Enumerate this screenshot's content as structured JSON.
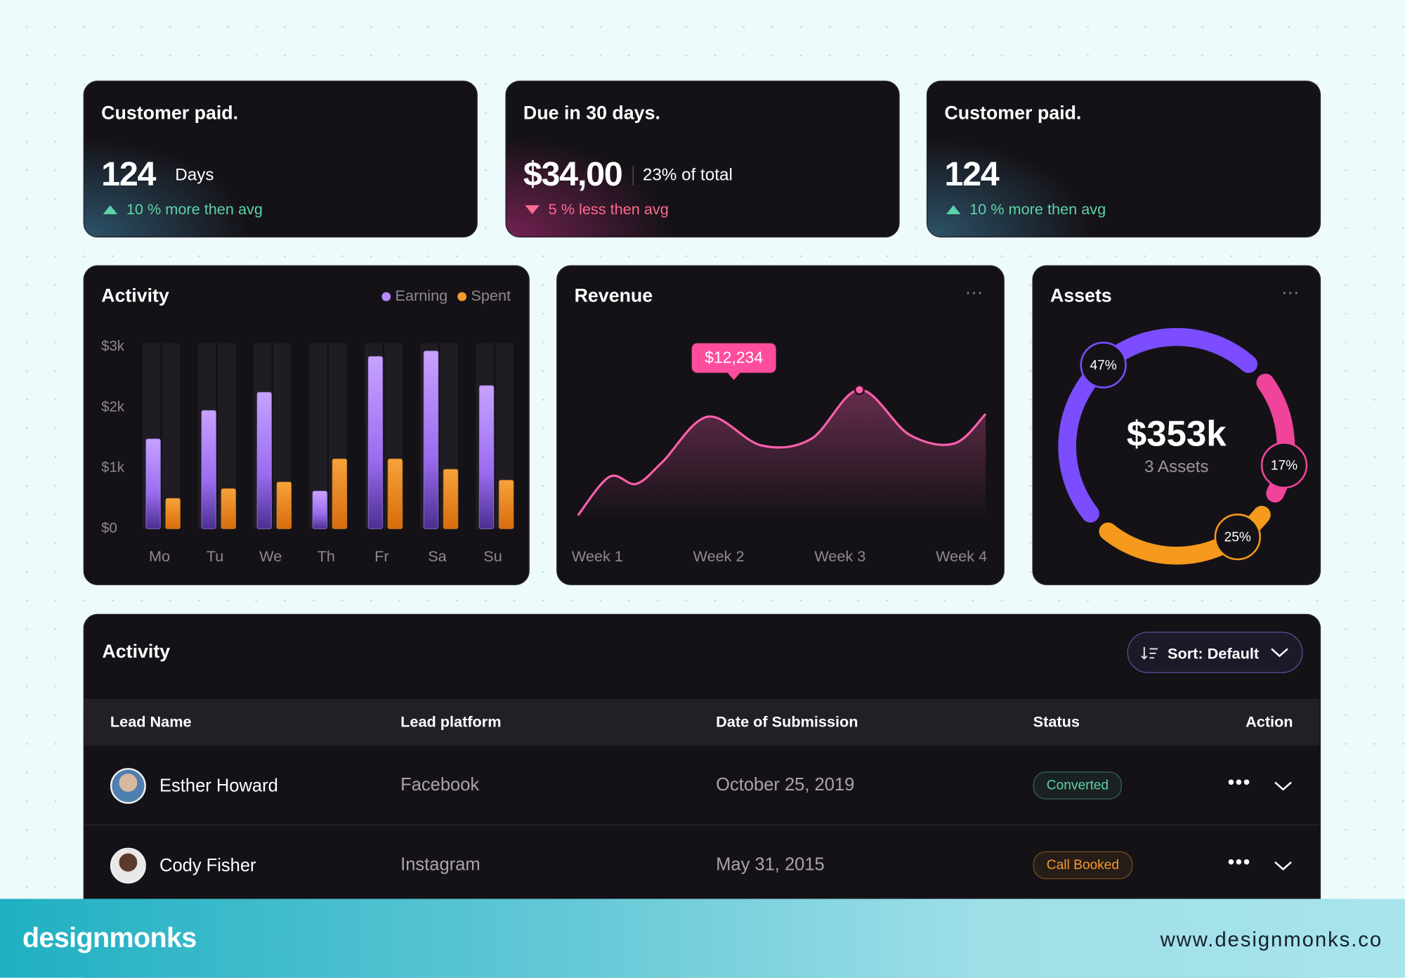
{
  "cards": [
    {
      "title": "Customer paid.",
      "value": "124",
      "unit": "Days",
      "change": "10 % more then avg",
      "trend": "up"
    },
    {
      "title": "Due in 30 days.",
      "value": "$34,00",
      "unit": "23% of total",
      "change": "5 % less then avg",
      "trend": "down"
    },
    {
      "title": "Customer paid.",
      "value": "124",
      "change": "10 % more then avg",
      "trend": "up"
    }
  ],
  "chart_data": [
    {
      "type": "bar",
      "title": "Activity",
      "categories": [
        "Mo",
        "Tu",
        "We",
        "Th",
        "Fr",
        "Sa",
        "Su"
      ],
      "series": [
        {
          "name": "Earning",
          "color": "#b48cff",
          "values": [
            1480,
            1950,
            2250,
            620,
            2840,
            2930,
            2360
          ]
        },
        {
          "name": "Spent",
          "color": "#f59a2c",
          "values": [
            500,
            660,
            770,
            1150,
            1150,
            980,
            800
          ]
        }
      ],
      "ylim": [
        0,
        3000
      ],
      "yticks": [
        {
          "value": 0,
          "label": "$0"
        },
        {
          "value": 1000,
          "label": "$1k"
        },
        {
          "value": 2000,
          "label": "$2k"
        },
        {
          "value": 3000,
          "label": "$3k"
        }
      ],
      "legend": "top-right"
    },
    {
      "type": "line",
      "title": "Revenue",
      "color": "#ff5fae",
      "x": [
        0.84,
        1.1,
        1.32,
        1.54,
        1.91,
        2.35,
        2.76,
        3.16,
        3.57,
        3.94,
        4.2
      ],
      "values": [
        422,
        4050,
        3375,
        5484,
        9703,
        7003,
        7594,
        12234,
        8015,
        7172,
        9956
      ],
      "xlim": [
        0.84,
        4.2
      ],
      "xticks": [
        {
          "value": 1,
          "label": "Week 1"
        },
        {
          "value": 2,
          "label": "Week 2"
        },
        {
          "value": 3,
          "label": "Week 3"
        },
        {
          "value": 4,
          "label": "Week 4"
        }
      ],
      "ylim": [
        0,
        14000
      ],
      "annotation": "$12,234"
    },
    {
      "type": "donut",
      "title": "Assets",
      "center_value": "$353k",
      "center_label": "3 Assets",
      "values": [
        47,
        17,
        25
      ],
      "value_labels": [
        "47%",
        "17%",
        "25%"
      ],
      "colors": [
        "#7b4dff",
        "#f0449a",
        "#f59a1c"
      ]
    }
  ],
  "table": {
    "title": "Activity",
    "sort": "Sort: Default",
    "columns": [
      "Lead Name",
      "Lead platform",
      "Date of Submission",
      "Status",
      "Action"
    ],
    "rows": [
      {
        "name": "Esther Howard",
        "platform": "Facebook",
        "date": "October 25, 2019",
        "status": "Converted",
        "status_color": "#5fd3a8"
      },
      {
        "name": "Cody Fisher",
        "platform": "Instagram",
        "date": "May 31, 2015",
        "status": "Call Booked",
        "status_color": "#f59a2c"
      }
    ]
  },
  "footer": {
    "brand": "designmonks",
    "url": "www.designmonks.co"
  }
}
